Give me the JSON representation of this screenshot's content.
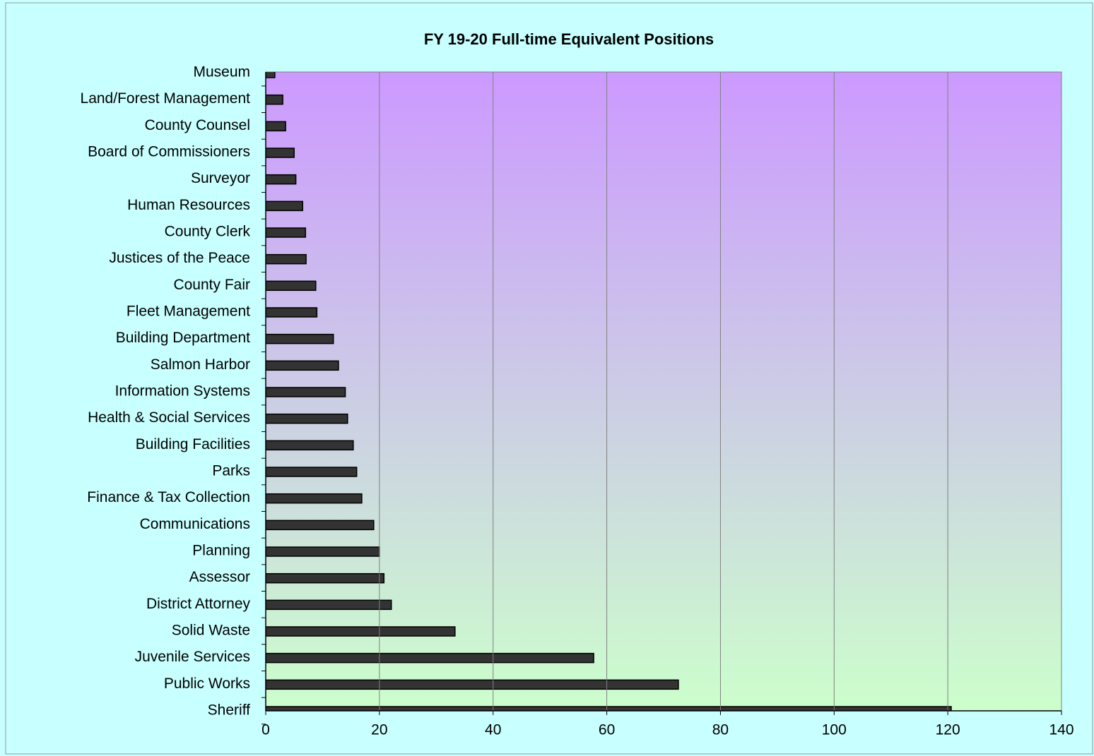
{
  "chart_data": {
    "type": "barh",
    "title": "FY 19-20 Full-time Equivalent Positions",
    "categories": [
      "Museum",
      "Land/Forest Management",
      "County Counsel",
      "Board of Commissioners",
      "Surveyor",
      "Human Resources",
      "County Clerk",
      "Justices of the Peace",
      "County Fair",
      "Fleet Management",
      "Building Department",
      "Salmon Harbor",
      "Information Systems",
      "Health & Social Services",
      "Building Facilities",
      "Parks",
      "Finance & Tax Collection",
      "Communications",
      "Planning",
      "Assessor",
      "District Attorney",
      "Solid Waste",
      "Juvenile Services",
      "Public Works",
      "Sheriff"
    ],
    "values": [
      1.6,
      3,
      3.5,
      5,
      5.3,
      6.5,
      7,
      7.1,
      8.8,
      9,
      11.9,
      12.8,
      14,
      14.4,
      15.4,
      16,
      16.9,
      19,
      20,
      20.8,
      22.1,
      33.3,
      57.7,
      72.6,
      120.6
    ],
    "color": "#333333",
    "xlim": [
      0,
      140
    ],
    "xticks": [
      0,
      20,
      40,
      60,
      80,
      100,
      120,
      140
    ],
    "grid": true
  }
}
